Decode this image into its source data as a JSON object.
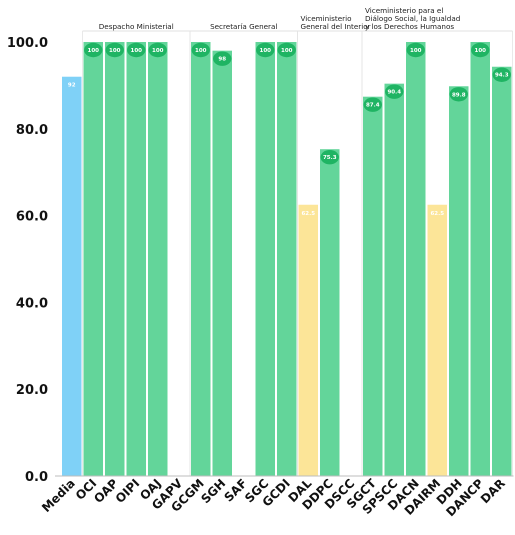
{
  "chart_data": {
    "type": "bar",
    "ylim": [
      0,
      100
    ],
    "yticks": [
      {
        "value": 0,
        "label": "0.0"
      },
      {
        "value": 20,
        "label": "20.0"
      },
      {
        "value": 40,
        "label": "40.0"
      },
      {
        "value": 60,
        "label": "60.0"
      },
      {
        "value": 80,
        "label": "80.0"
      },
      {
        "value": 100,
        "label": "100.0"
      }
    ],
    "colors": {
      "average": "#7fd1f7",
      "normal": "#63d59a",
      "warning": "#fce598",
      "badge": "#1fb463"
    },
    "categories": [
      "Media",
      "OCI",
      "OAP",
      "OIPI",
      "OAJ",
      "GAPV",
      "GCGM",
      "SGH",
      "SAF",
      "SGC",
      "GCDI",
      "DAL",
      "DDPC",
      "DSCC",
      "SGCT",
      "SPSCC",
      "DACN",
      "DAIRM",
      "DDH",
      "DANCP",
      "DAR"
    ],
    "bars": [
      {
        "category": "Media",
        "value": 92,
        "label": "92",
        "color": "average"
      },
      {
        "category": "OCI",
        "value": 100,
        "label": "100",
        "color": "normal"
      },
      {
        "category": "OAP",
        "value": 100,
        "label": "100",
        "color": "normal"
      },
      {
        "category": "OIPI",
        "value": 100,
        "label": "100",
        "color": "normal"
      },
      {
        "category": "OAJ",
        "value": 100,
        "label": "100",
        "color": "normal"
      },
      {
        "category": "GAPV",
        "value": null,
        "label": "",
        "color": "normal"
      },
      {
        "category": "GCGM",
        "value": 100,
        "label": "100",
        "color": "normal"
      },
      {
        "category": "SGH",
        "value": 98,
        "label": "98",
        "color": "normal"
      },
      {
        "category": "SAF",
        "value": null,
        "label": "",
        "color": "normal"
      },
      {
        "category": "SGC",
        "value": 100,
        "label": "100",
        "color": "normal"
      },
      {
        "category": "GCDI",
        "value": 100,
        "label": "100",
        "color": "normal"
      },
      {
        "category": "DAL",
        "value": 62.5,
        "label": "62.5",
        "color": "warning"
      },
      {
        "category": "DDPC",
        "value": 75.3,
        "label": "75.3",
        "color": "normal"
      },
      {
        "category": "DSCC",
        "value": null,
        "label": "",
        "color": "normal"
      },
      {
        "category": "SGCT",
        "value": 87.4,
        "label": "87.4",
        "color": "normal"
      },
      {
        "category": "SPSCC",
        "value": 90.4,
        "label": "90.4",
        "color": "normal"
      },
      {
        "category": "DACN",
        "value": 100,
        "label": "100",
        "color": "normal"
      },
      {
        "category": "DAIRM",
        "value": 62.5,
        "label": "62.5",
        "color": "warning"
      },
      {
        "category": "DDH",
        "value": 89.8,
        "label": "89.8",
        "color": "normal"
      },
      {
        "category": "DANCP",
        "value": 100,
        "label": "100",
        "color": "normal"
      },
      {
        "category": "DAR",
        "value": 94.3,
        "label": "94.3",
        "color": "normal"
      }
    ],
    "groups": [
      {
        "lines": [
          "Despacho Ministerial"
        ],
        "from": 1,
        "to": 5
      },
      {
        "lines": [
          "Secretaría General"
        ],
        "from": 6,
        "to": 10
      },
      {
        "lines": [
          "Viceministerio",
          "General del Interior"
        ],
        "from": 11,
        "to": 13
      },
      {
        "lines": [
          "Viceministerio para el",
          "Diálogo Social, la Igualdad",
          "y los Derechos Humanos"
        ],
        "from": 14,
        "to": 20
      }
    ]
  }
}
